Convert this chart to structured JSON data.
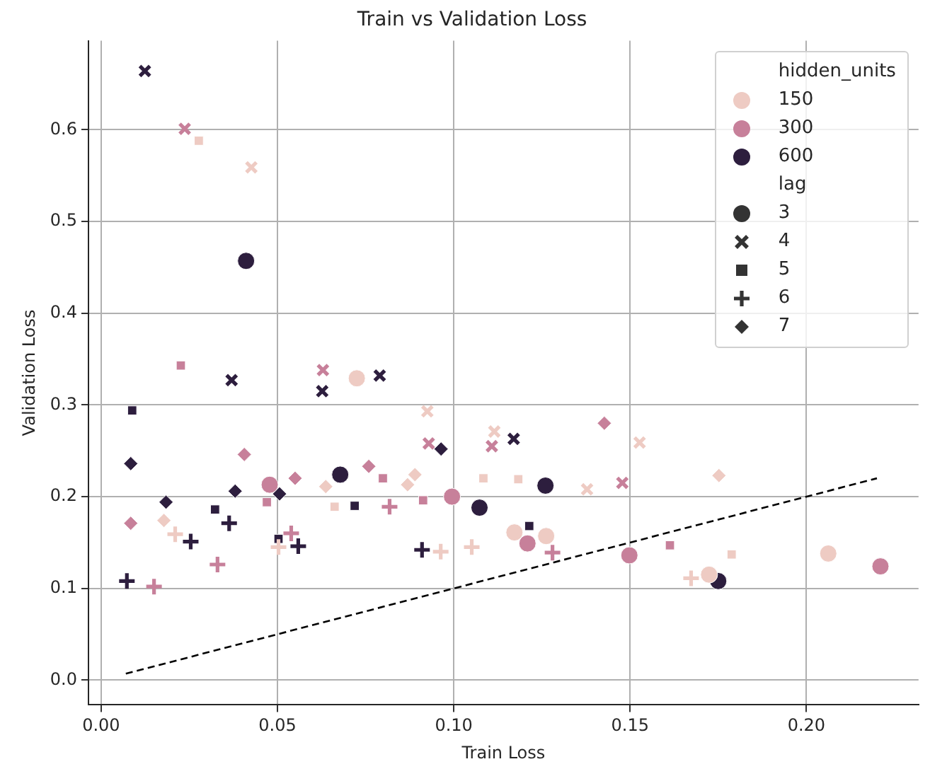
{
  "chart_data": {
    "type": "scatter",
    "title": "Train vs Validation Loss",
    "xlabel": "Train Loss",
    "ylabel": "Validation Loss",
    "legend_title": "hidden_units",
    "xlim": [
      -0.0036,
      0.2318
    ],
    "ylim": [
      -0.027,
      0.697
    ],
    "xticks": [
      {
        "value": 0,
        "label": "0.00"
      },
      {
        "value": 0.05,
        "label": "0.05"
      },
      {
        "value": 0.1,
        "label": "0.10"
      },
      {
        "value": 0.15,
        "label": "0.15"
      },
      {
        "value": 0.2,
        "label": "0.20"
      }
    ],
    "yticks": [
      {
        "value": 0,
        "label": "0.0"
      },
      {
        "value": 0.1,
        "label": "0.1"
      },
      {
        "value": 0.2,
        "label": "0.2"
      },
      {
        "value": 0.3,
        "label": "0.3"
      },
      {
        "value": 0.4,
        "label": "0.4"
      },
      {
        "value": 0.5,
        "label": "0.5"
      },
      {
        "value": 0.6,
        "label": "0.6"
      }
    ],
    "grid": true,
    "legend": "top right",
    "series": [
      {
        "color": "#eecbc3",
        "marker": "circle",
        "x": [
          0.0725,
          0.1172,
          0.1262,
          0.1724,
          0.2062
        ],
        "values": [
          0.329,
          0.161,
          0.157,
          0.115,
          0.138
        ]
      },
      {
        "color": "#eecbc3",
        "marker": "cross",
        "x": [
          0.0426,
          0.0925,
          0.1115,
          0.1378,
          0.1527
        ],
        "values": [
          0.559,
          0.293,
          0.271,
          0.208,
          0.259
        ]
      },
      {
        "color": "#eecbc3",
        "marker": "square",
        "x": [
          0.0277,
          0.0662,
          0.1084,
          0.1183,
          0.1788
        ],
        "values": [
          0.588,
          0.189,
          0.22,
          0.219,
          0.137
        ]
      },
      {
        "color": "#eecbc3",
        "marker": "plus",
        "x": [
          0.021,
          0.0503,
          0.0963,
          0.1051,
          0.1673
        ],
        "values": [
          0.159,
          0.145,
          0.14,
          0.145,
          0.111
        ]
      },
      {
        "color": "#eecbc3",
        "marker": "diamond",
        "x": [
          0.0178,
          0.0637,
          0.0869,
          0.089,
          0.1752
        ],
        "values": [
          0.174,
          0.211,
          0.213,
          0.224,
          0.223
        ]
      },
      {
        "color": "#c7809a",
        "marker": "circle",
        "x": [
          0.0478,
          0.0995,
          0.1209,
          0.1498,
          0.221
        ],
        "values": [
          0.213,
          0.2,
          0.149,
          0.136,
          0.124
        ]
      },
      {
        "color": "#c7809a",
        "marker": "cross",
        "x": [
          0.0237,
          0.0629,
          0.0929,
          0.1108,
          0.1478
        ],
        "values": [
          0.601,
          0.338,
          0.258,
          0.255,
          0.215
        ]
      },
      {
        "color": "#c7809a",
        "marker": "square",
        "x": [
          0.0226,
          0.047,
          0.0799,
          0.0913,
          0.1613
        ],
        "values": [
          0.343,
          0.194,
          0.22,
          0.196,
          0.147
        ]
      },
      {
        "color": "#c7809a",
        "marker": "plus",
        "x": [
          0.015,
          0.033,
          0.0539,
          0.0818,
          0.128
        ],
        "values": [
          0.102,
          0.126,
          0.16,
          0.189,
          0.139
        ]
      },
      {
        "color": "#c7809a",
        "marker": "diamond",
        "x": [
          0.0084,
          0.0406,
          0.055,
          0.0759,
          0.1427
        ],
        "values": [
          0.171,
          0.246,
          0.22,
          0.233,
          0.28
        ]
      },
      {
        "color": "#2d1e3e",
        "marker": "circle",
        "x": [
          0.0411,
          0.0678,
          0.1073,
          0.126,
          0.175
        ],
        "values": [
          0.457,
          0.224,
          0.188,
          0.212,
          0.108
        ]
      },
      {
        "color": "#2d1e3e",
        "marker": "cross",
        "x": [
          0.0124,
          0.037,
          0.0627,
          0.079,
          0.117
        ],
        "values": [
          0.664,
          0.327,
          0.315,
          0.332,
          0.263
        ]
      },
      {
        "color": "#2d1e3e",
        "marker": "square",
        "x": [
          0.0088,
          0.0323,
          0.0503,
          0.0719,
          0.1214
        ],
        "values": [
          0.294,
          0.186,
          0.154,
          0.19,
          0.168
        ]
      },
      {
        "color": "#2d1e3e",
        "marker": "plus",
        "x": [
          0.0073,
          0.0254,
          0.0363,
          0.0559,
          0.091
        ],
        "values": [
          0.108,
          0.151,
          0.171,
          0.146,
          0.142
        ]
      },
      {
        "color": "#2d1e3e",
        "marker": "diamond",
        "x": [
          0.0084,
          0.0184,
          0.038,
          0.0506,
          0.0964
        ],
        "values": [
          0.236,
          0.194,
          0.206,
          0.203,
          0.252
        ]
      },
      {
        "type": "line",
        "color": "#000000",
        "marker": "none",
        "line_style": "dashed",
        "x": [
          0.007,
          0.22
        ],
        "values": [
          0.007,
          0.22
        ]
      },
      {
        "name": "150",
        "color": "#eecbc3",
        "marker": "circle"
      },
      {
        "name": "300",
        "color": "#c7809a",
        "marker": "circle"
      },
      {
        "name": "600",
        "color": "#2d1e3e",
        "marker": "circle"
      },
      {
        "name": "lag",
        "color": "#333333",
        "marker": "none"
      },
      {
        "name": "3",
        "color": "#333333",
        "marker": "circle"
      },
      {
        "name": "4",
        "color": "#333333",
        "marker": "cross"
      },
      {
        "name": "5",
        "color": "#333333",
        "marker": "square"
      },
      {
        "name": "6",
        "color": "#333333",
        "marker": "plus"
      },
      {
        "name": "7",
        "color": "#333333",
        "marker": "diamond"
      }
    ]
  }
}
